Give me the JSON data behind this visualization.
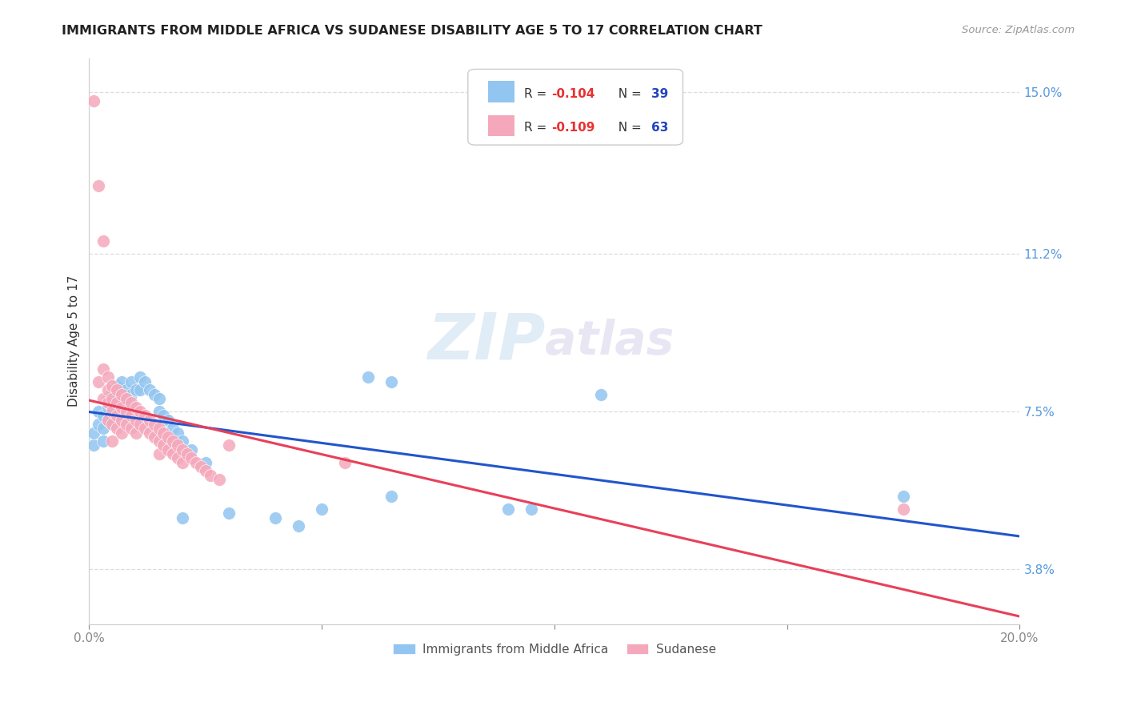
{
  "title": "IMMIGRANTS FROM MIDDLE AFRICA VS SUDANESE DISABILITY AGE 5 TO 17 CORRELATION CHART",
  "source": "Source: ZipAtlas.com",
  "ylabel": "Disability Age 5 to 17",
  "xmin": 0.0,
  "xmax": 0.2,
  "ymin": 0.025,
  "ymax": 0.158,
  "yticks": [
    0.038,
    0.075,
    0.112,
    0.15
  ],
  "ytick_labels": [
    "3.8%",
    "7.5%",
    "11.2%",
    "15.0%"
  ],
  "xticks": [
    0.0,
    0.05,
    0.1,
    0.15,
    0.2
  ],
  "xtick_labels": [
    "0.0%",
    "",
    "",
    "",
    "20.0%"
  ],
  "color_blue": "#92C5F0",
  "color_pink": "#F5A8BB",
  "color_blue_line": "#2255CC",
  "color_pink_line": "#E8405A",
  "watermark_zip": "ZIP",
  "watermark_atlas": "atlas",
  "blue_points": [
    [
      0.001,
      0.067
    ],
    [
      0.001,
      0.07
    ],
    [
      0.002,
      0.072
    ],
    [
      0.002,
      0.075
    ],
    [
      0.003,
      0.074
    ],
    [
      0.003,
      0.071
    ],
    [
      0.003,
      0.068
    ],
    [
      0.004,
      0.078
    ],
    [
      0.004,
      0.076
    ],
    [
      0.004,
      0.073
    ],
    [
      0.005,
      0.079
    ],
    [
      0.005,
      0.076
    ],
    [
      0.005,
      0.073
    ],
    [
      0.006,
      0.081
    ],
    [
      0.006,
      0.078
    ],
    [
      0.007,
      0.082
    ],
    [
      0.007,
      0.079
    ],
    [
      0.008,
      0.08
    ],
    [
      0.008,
      0.077
    ],
    [
      0.009,
      0.082
    ],
    [
      0.009,
      0.079
    ],
    [
      0.01,
      0.08
    ],
    [
      0.011,
      0.083
    ],
    [
      0.011,
      0.08
    ],
    [
      0.012,
      0.082
    ],
    [
      0.013,
      0.08
    ],
    [
      0.014,
      0.079
    ],
    [
      0.015,
      0.078
    ],
    [
      0.015,
      0.075
    ],
    [
      0.016,
      0.074
    ],
    [
      0.017,
      0.073
    ],
    [
      0.018,
      0.071
    ],
    [
      0.019,
      0.07
    ],
    [
      0.02,
      0.068
    ],
    [
      0.022,
      0.066
    ],
    [
      0.025,
      0.063
    ],
    [
      0.06,
      0.083
    ],
    [
      0.065,
      0.082
    ],
    [
      0.11,
      0.079
    ],
    [
      0.175,
      0.055
    ],
    [
      0.02,
      0.05
    ],
    [
      0.03,
      0.051
    ],
    [
      0.04,
      0.05
    ],
    [
      0.045,
      0.048
    ],
    [
      0.065,
      0.055
    ],
    [
      0.05,
      0.052
    ],
    [
      0.09,
      0.052
    ],
    [
      0.095,
      0.052
    ]
  ],
  "pink_points": [
    [
      0.001,
      0.148
    ],
    [
      0.002,
      0.128
    ],
    [
      0.003,
      0.115
    ],
    [
      0.002,
      0.082
    ],
    [
      0.003,
      0.085
    ],
    [
      0.003,
      0.078
    ],
    [
      0.004,
      0.083
    ],
    [
      0.004,
      0.08
    ],
    [
      0.004,
      0.077
    ],
    [
      0.004,
      0.073
    ],
    [
      0.005,
      0.081
    ],
    [
      0.005,
      0.078
    ],
    [
      0.005,
      0.075
    ],
    [
      0.005,
      0.072
    ],
    [
      0.005,
      0.068
    ],
    [
      0.006,
      0.08
    ],
    [
      0.006,
      0.077
    ],
    [
      0.006,
      0.074
    ],
    [
      0.006,
      0.071
    ],
    [
      0.007,
      0.079
    ],
    [
      0.007,
      0.076
    ],
    [
      0.007,
      0.073
    ],
    [
      0.007,
      0.07
    ],
    [
      0.008,
      0.078
    ],
    [
      0.008,
      0.075
    ],
    [
      0.008,
      0.072
    ],
    [
      0.009,
      0.077
    ],
    [
      0.009,
      0.074
    ],
    [
      0.009,
      0.071
    ],
    [
      0.01,
      0.076
    ],
    [
      0.01,
      0.073
    ],
    [
      0.01,
      0.07
    ],
    [
      0.011,
      0.075
    ],
    [
      0.011,
      0.072
    ],
    [
      0.012,
      0.074
    ],
    [
      0.012,
      0.071
    ],
    [
      0.013,
      0.073
    ],
    [
      0.013,
      0.07
    ],
    [
      0.014,
      0.072
    ],
    [
      0.014,
      0.069
    ],
    [
      0.015,
      0.071
    ],
    [
      0.015,
      0.068
    ],
    [
      0.015,
      0.065
    ],
    [
      0.016,
      0.07
    ],
    [
      0.016,
      0.067
    ],
    [
      0.017,
      0.069
    ],
    [
      0.017,
      0.066
    ],
    [
      0.018,
      0.068
    ],
    [
      0.018,
      0.065
    ],
    [
      0.019,
      0.067
    ],
    [
      0.019,
      0.064
    ],
    [
      0.02,
      0.066
    ],
    [
      0.02,
      0.063
    ],
    [
      0.021,
      0.065
    ],
    [
      0.022,
      0.064
    ],
    [
      0.023,
      0.063
    ],
    [
      0.024,
      0.062
    ],
    [
      0.025,
      0.061
    ],
    [
      0.026,
      0.06
    ],
    [
      0.028,
      0.059
    ],
    [
      0.03,
      0.067
    ],
    [
      0.055,
      0.063
    ],
    [
      0.175,
      0.052
    ]
  ]
}
